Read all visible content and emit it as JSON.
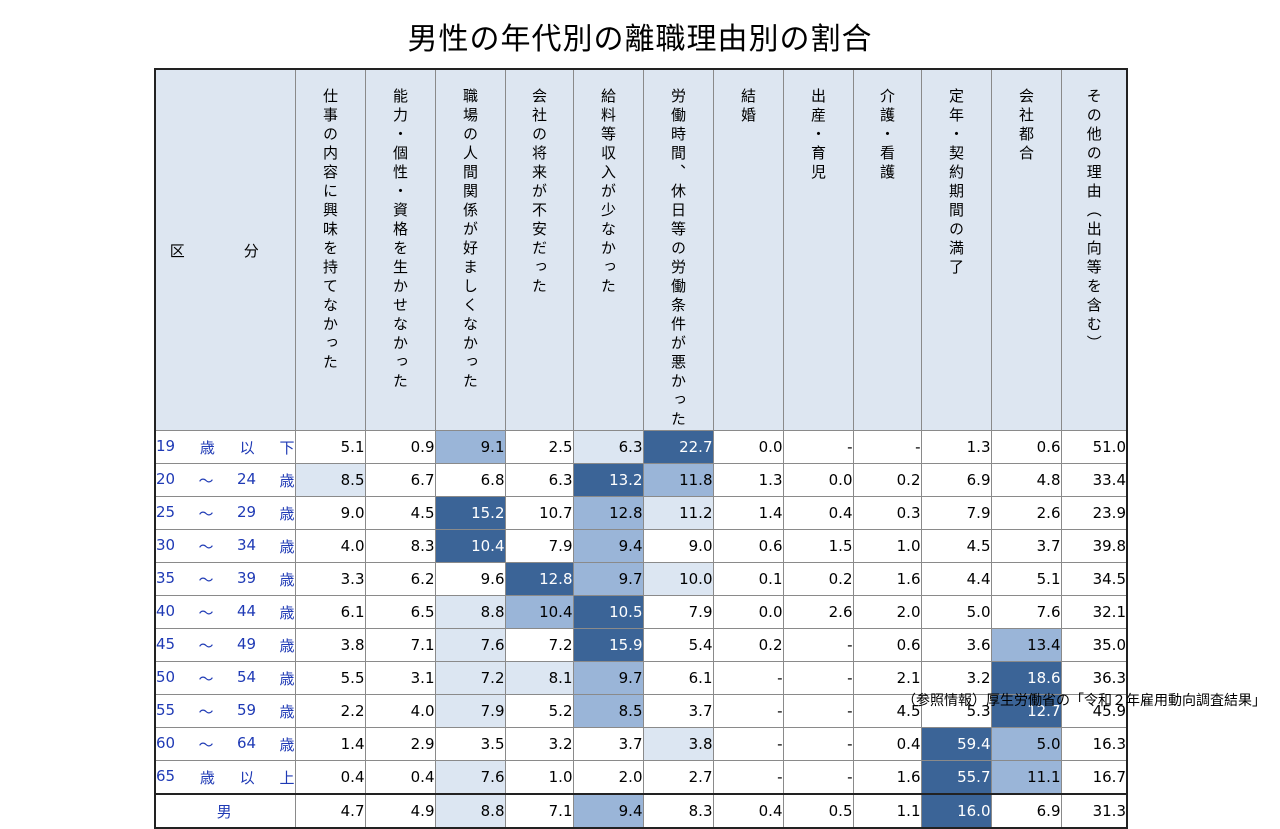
{
  "title": "男性の年代別の離職理由別の割合",
  "source": "（参照情報）厚生労働省の「令和２年雇用動向調査結果」",
  "chart_data": {
    "type": "table",
    "title": "男性の年代別の離職理由別の割合",
    "row_header": "区　分",
    "columns": [
      "仕事の内容に興味を持てなかった",
      "能力・個性・資格を生かせなかった",
      "職場の人間関係が好ましくなかった",
      "会社の将来が不安だった",
      "給料等収入が少なかった",
      "労働時間、休日等の労働条件が悪かった",
      "結婚",
      "出産・育児",
      "介護・看護",
      "定年・契約期間の満了",
      "会社都合",
      "その他の理由（出向等を含む）"
    ],
    "rows": [
      {
        "label": [
          "19",
          "歳",
          "以",
          "下"
        ],
        "values": [
          "5.1",
          "0.9",
          "9.1",
          "2.5",
          "6.3",
          "22.7",
          "0.0",
          "-",
          "-",
          "1.3",
          "0.6",
          "51.0"
        ],
        "levels": [
          0,
          0,
          2,
          0,
          1,
          3,
          0,
          0,
          0,
          0,
          0,
          0
        ]
      },
      {
        "label": [
          "20",
          "～",
          "24",
          "歳"
        ],
        "values": [
          "8.5",
          "6.7",
          "6.8",
          "6.3",
          "13.2",
          "11.8",
          "1.3",
          "0.0",
          "0.2",
          "6.9",
          "4.8",
          "33.4"
        ],
        "levels": [
          1,
          0,
          0,
          0,
          3,
          2,
          0,
          0,
          0,
          0,
          0,
          0
        ]
      },
      {
        "label": [
          "25",
          "～",
          "29",
          "歳"
        ],
        "values": [
          "9.0",
          "4.5",
          "15.2",
          "10.7",
          "12.8",
          "11.2",
          "1.4",
          "0.4",
          "0.3",
          "7.9",
          "2.6",
          "23.9"
        ],
        "levels": [
          0,
          0,
          3,
          0,
          2,
          1,
          0,
          0,
          0,
          0,
          0,
          0
        ]
      },
      {
        "label": [
          "30",
          "～",
          "34",
          "歳"
        ],
        "values": [
          "4.0",
          "8.3",
          "10.4",
          "7.9",
          "9.4",
          "9.0",
          "0.6",
          "1.5",
          "1.0",
          "4.5",
          "3.7",
          "39.8"
        ],
        "levels": [
          0,
          0,
          3,
          0,
          2,
          0,
          0,
          0,
          0,
          0,
          0,
          0
        ]
      },
      {
        "label": [
          "35",
          "～",
          "39",
          "歳"
        ],
        "values": [
          "3.3",
          "6.2",
          "9.6",
          "12.8",
          "9.7",
          "10.0",
          "0.1",
          "0.2",
          "1.6",
          "4.4",
          "5.1",
          "34.5"
        ],
        "levels": [
          0,
          0,
          0,
          3,
          2,
          1,
          0,
          0,
          0,
          0,
          0,
          0
        ]
      },
      {
        "label": [
          "40",
          "～",
          "44",
          "歳"
        ],
        "values": [
          "6.1",
          "6.5",
          "8.8",
          "10.4",
          "10.5",
          "7.9",
          "0.0",
          "2.6",
          "2.0",
          "5.0",
          "7.6",
          "32.1"
        ],
        "levels": [
          0,
          0,
          1,
          2,
          3,
          0,
          0,
          0,
          0,
          0,
          0,
          0
        ]
      },
      {
        "label": [
          "45",
          "～",
          "49",
          "歳"
        ],
        "values": [
          "3.8",
          "7.1",
          "7.6",
          "7.2",
          "15.9",
          "5.4",
          "0.2",
          "-",
          "0.6",
          "3.6",
          "13.4",
          "35.0"
        ],
        "levels": [
          0,
          0,
          1,
          0,
          3,
          0,
          0,
          0,
          0,
          0,
          2,
          0
        ]
      },
      {
        "label": [
          "50",
          "～",
          "54",
          "歳"
        ],
        "values": [
          "5.5",
          "3.1",
          "7.2",
          "8.1",
          "9.7",
          "6.1",
          "-",
          "-",
          "2.1",
          "3.2",
          "18.6",
          "36.3"
        ],
        "levels": [
          0,
          0,
          1,
          1,
          2,
          0,
          0,
          0,
          0,
          0,
          3,
          0
        ]
      },
      {
        "label": [
          "55",
          "～",
          "59",
          "歳"
        ],
        "values": [
          "2.2",
          "4.0",
          "7.9",
          "5.2",
          "8.5",
          "3.7",
          "-",
          "-",
          "4.5",
          "5.3",
          "12.7",
          "45.9"
        ],
        "levels": [
          0,
          0,
          1,
          0,
          2,
          0,
          0,
          0,
          0,
          0,
          3,
          0
        ]
      },
      {
        "label": [
          "60",
          "～",
          "64",
          "歳"
        ],
        "values": [
          "1.4",
          "2.9",
          "3.5",
          "3.2",
          "3.7",
          "3.8",
          "-",
          "-",
          "0.4",
          "59.4",
          "5.0",
          "16.3"
        ],
        "levels": [
          0,
          0,
          0,
          0,
          0,
          1,
          0,
          0,
          0,
          3,
          2,
          0
        ]
      },
      {
        "label": [
          "65",
          "歳",
          "以",
          "上"
        ],
        "values": [
          "0.4",
          "0.4",
          "7.6",
          "1.0",
          "2.0",
          "2.7",
          "-",
          "-",
          "1.6",
          "55.7",
          "11.1",
          "16.7"
        ],
        "levels": [
          0,
          0,
          1,
          0,
          0,
          0,
          0,
          0,
          0,
          3,
          2,
          0
        ]
      }
    ],
    "total": {
      "label": "男",
      "values": [
        "4.7",
        "4.9",
        "8.8",
        "7.1",
        "9.4",
        "8.3",
        "0.4",
        "0.5",
        "1.1",
        "16.0",
        "6.9",
        "31.3"
      ],
      "levels": [
        0,
        0,
        1,
        0,
        2,
        0,
        0,
        0,
        0,
        3,
        0,
        0
      ]
    },
    "colors": {
      "lv1": "#dce6f2",
      "lv2": "#9ab5d8",
      "lv3": "#3b6497",
      "header": "#dde6f1",
      "label_text": "#1f3ab5"
    }
  }
}
